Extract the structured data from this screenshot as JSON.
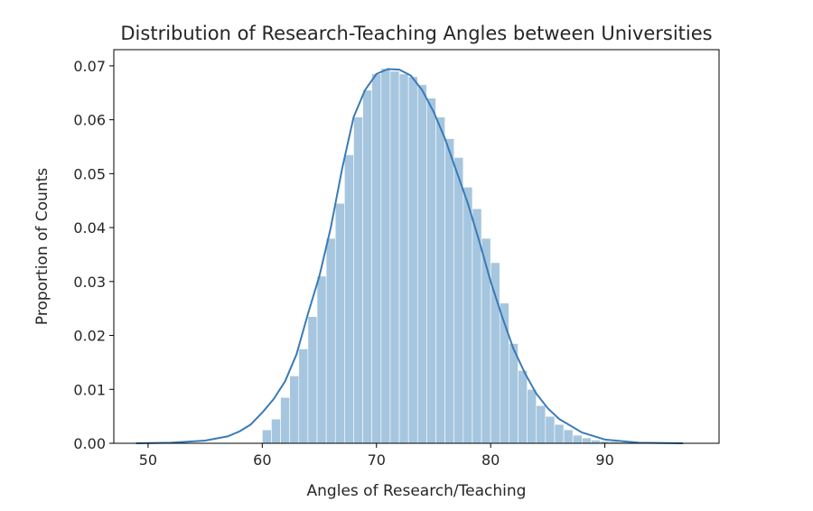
{
  "chart_data": {
    "type": "histogram",
    "title": "Distribution of Research-Teaching Angles between Universities",
    "xlabel": "Angles of Research/Teaching",
    "ylabel": "Proportion of Counts",
    "xlim": [
      47,
      100
    ],
    "ylim": [
      0,
      0.073
    ],
    "x_ticks": [
      50,
      60,
      70,
      80,
      90
    ],
    "x_tick_labels": [
      "50",
      "60",
      "70",
      "80",
      "90"
    ],
    "y_ticks": [
      0,
      0.01,
      0.02,
      0.03,
      0.04,
      0.05,
      0.06,
      0.07
    ],
    "y_tick_labels": [
      "0.00",
      "0.01",
      "0.02",
      "0.03",
      "0.04",
      "0.05",
      "0.06",
      "0.07"
    ],
    "grid": false,
    "colors": {
      "bars": "#a6c6df",
      "kde": "#3a7bb6",
      "bar_edge": "#ffffff"
    },
    "bins": {
      "edges": [
        60,
        60.8,
        61.6,
        62.4,
        63.2,
        64,
        64.8,
        65.6,
        66.4,
        67.2,
        68,
        68.8,
        69.6,
        70.4,
        71.2,
        72,
        72.8,
        73.6,
        74.4,
        75.2,
        76,
        76.8,
        77.6,
        78.4,
        79.2,
        80,
        80.8,
        81.6,
        82.4,
        83.2,
        84,
        84.8,
        85.6,
        86.4,
        87.2,
        88,
        88.8,
        89.6,
        90.4,
        91.2,
        92,
        92.8,
        93.6,
        94.4,
        95.2,
        96,
        96.8
      ],
      "values": [
        0.0025,
        0.0045,
        0.0085,
        0.0125,
        0.0175,
        0.0235,
        0.031,
        0.038,
        0.0445,
        0.0535,
        0.0605,
        0.0655,
        0.0685,
        0.0695,
        0.069,
        0.0685,
        0.068,
        0.0665,
        0.064,
        0.0605,
        0.0565,
        0.053,
        0.0475,
        0.0435,
        0.038,
        0.0335,
        0.026,
        0.0185,
        0.0135,
        0.01,
        0.007,
        0.005,
        0.0035,
        0.0025,
        0.0015,
        0.001,
        0.0006,
        0.0004,
        0.0003,
        0.0002,
        0.0001,
        0.0001,
        5e-05,
        3e-05,
        2e-05,
        1e-05
      ]
    },
    "kde": {
      "x": [
        49,
        52,
        55,
        57,
        58,
        59,
        60,
        61,
        62,
        63,
        64,
        65,
        66,
        67,
        68,
        69,
        70,
        71,
        72,
        73,
        74,
        75,
        76,
        77,
        78,
        79,
        80,
        81,
        82,
        83,
        84,
        85,
        86,
        88,
        90,
        93,
        96.8
      ],
      "y": [
        0.0,
        0.0001,
        0.0005,
        0.0013,
        0.0022,
        0.0035,
        0.0057,
        0.0082,
        0.0115,
        0.0165,
        0.024,
        0.031,
        0.04,
        0.051,
        0.0605,
        0.0655,
        0.0685,
        0.0694,
        0.0693,
        0.0682,
        0.0655,
        0.0615,
        0.0565,
        0.0505,
        0.0445,
        0.0375,
        0.03,
        0.0235,
        0.0175,
        0.013,
        0.0092,
        0.0065,
        0.0045,
        0.002,
        0.0007,
        0.0001,
        0.0
      ]
    }
  }
}
